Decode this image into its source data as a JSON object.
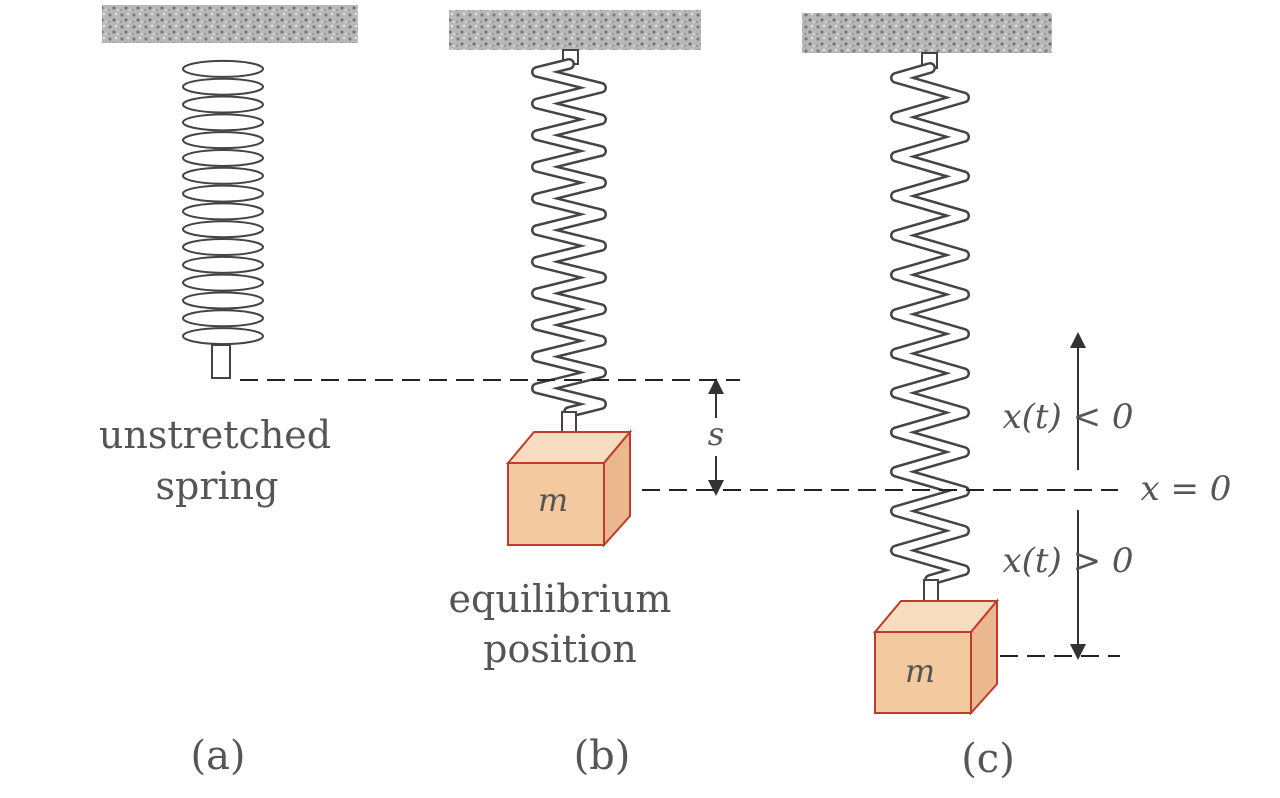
{
  "panels": {
    "a": {
      "label": "(a)",
      "caption_line1": "unstretched",
      "caption_line2": "spring"
    },
    "b": {
      "label": "(b)",
      "caption_line1": "equilibrium",
      "caption_line2": "position",
      "mass_label": "m",
      "stretch_label": "s"
    },
    "c": {
      "label": "(c)",
      "mass_label": "m",
      "above_label": "x(t) < 0",
      "zero_label": "x = 0",
      "below_label": "x(t) > 0"
    }
  },
  "colors": {
    "ceiling": "#9a9a9a",
    "mass_fill": "#f3c9a0",
    "mass_edge": "#c23b2a",
    "ink": "#333333"
  }
}
